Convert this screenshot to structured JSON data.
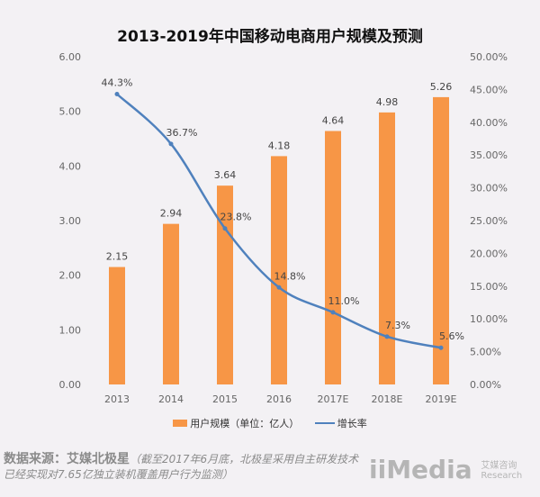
{
  "chart_data": {
    "type": "bar+line",
    "title": "2013-2019年中国移动电商用户规模及预测",
    "categories": [
      "2013",
      "2014",
      "2015",
      "2016",
      "2017E",
      "2018E",
      "2019E"
    ],
    "series": [
      {
        "name": "用户规模（单位：亿人）",
        "type": "bar",
        "axis": "left",
        "color": "#f79646",
        "values": [
          2.15,
          2.94,
          3.64,
          4.18,
          4.64,
          4.98,
          5.26
        ],
        "labels": [
          "2.15",
          "2.94",
          "3.64",
          "4.18",
          "4.64",
          "4.98",
          "5.26"
        ]
      },
      {
        "name": "增长率",
        "type": "line",
        "axis": "right",
        "color": "#4f81bd",
        "values": [
          44.3,
          36.7,
          23.8,
          14.8,
          11.0,
          7.3,
          5.6
        ],
        "labels": [
          "44.3%",
          "36.7%",
          "23.8%",
          "14.8%",
          "11.0%",
          "7.3%",
          "5.6%"
        ]
      }
    ],
    "left_axis": {
      "range": [
        0,
        6
      ],
      "ticks": [
        "0.00",
        "1.00",
        "2.00",
        "3.00",
        "4.00",
        "5.00",
        "6.00"
      ]
    },
    "right_axis": {
      "range": [
        0,
        50
      ],
      "ticks": [
        "0.00%",
        "5.00%",
        "10.00%",
        "15.00%",
        "20.00%",
        "25.00%",
        "30.00%",
        "35.00%",
        "40.00%",
        "45.00%",
        "50.00%"
      ]
    },
    "legend": "bottom-center",
    "grid": false
  },
  "legend": {
    "bar": "用户规模（单位：亿人）",
    "line": "增长率"
  },
  "source": {
    "label": "数据来源：艾媒北极星",
    "note": "（截至2017年6月底，北极星采用自主研发技术已经实现对7.65亿独立装机覆盖用户行为监测）"
  },
  "logo": {
    "text": "iiMedia",
    "cn": "艾媒咨询",
    "en": "Research"
  }
}
